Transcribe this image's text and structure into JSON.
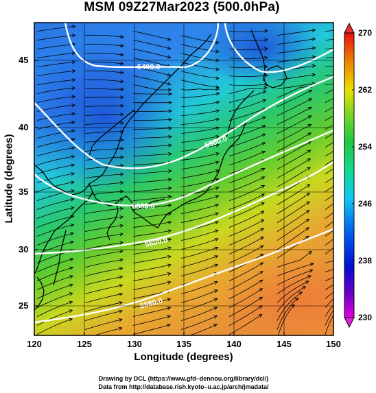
{
  "title": "MSM 09Z27Mar2023 (500.0hPa)",
  "x_axis": {
    "label": "Longitude (degrees)",
    "ticks": [
      "120",
      "125",
      "130",
      "135",
      "140",
      "145",
      "150"
    ]
  },
  "y_axis": {
    "label": "Latitude  (degrees)",
    "ticks": [
      "25",
      "30",
      "35",
      "40",
      "45"
    ]
  },
  "colorbar": {
    "ticks": [
      "230",
      "238",
      "246",
      "254",
      "262",
      "270"
    ],
    "range": [
      230,
      270
    ]
  },
  "contour_labels": [
    "5400.0",
    "5500.0",
    "5600.0",
    "5800.0",
    "5880.0"
  ],
  "credits": {
    "line1": "Drawing by DCL (https://www.gfd–dennou.org/library/dcl/)",
    "line2": "Data from http://database.rish.kyoto–u.ac.jp/arch/jmadata/"
  },
  "map": {
    "lon_range": [
      120,
      150
    ],
    "lat_range": [
      22.5,
      48
    ],
    "field": "temperature (K)",
    "overlays": [
      "geopotential height contours",
      "wind streamlines",
      "coastlines"
    ]
  }
}
